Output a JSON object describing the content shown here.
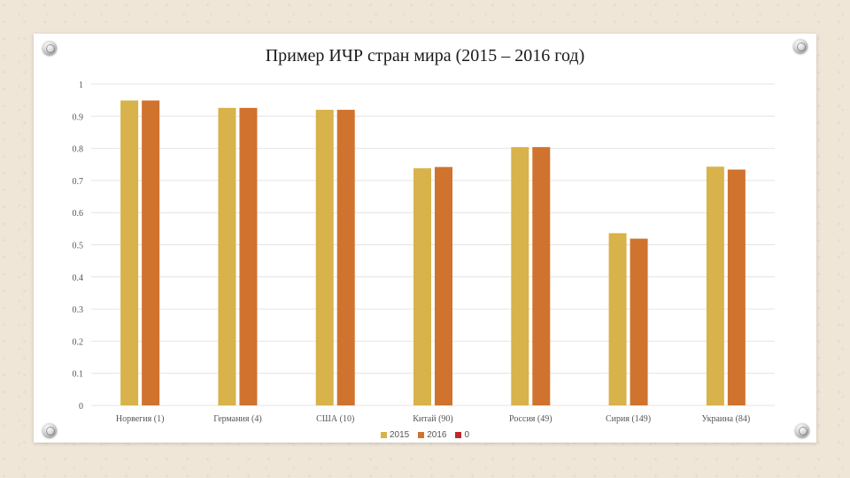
{
  "chart_data": {
    "type": "bar",
    "title": "Пример ИЧР стран мира (2015 – 2016 год)",
    "categories": [
      "Норвегия (1)",
      "Германия (4)",
      "США (10)",
      "Китай (90)",
      "Россия (49)",
      "Сирия (149)",
      "Украина (84)"
    ],
    "series": [
      {
        "name": "2015",
        "color": "#d8b24a",
        "values": [
          0.949,
          0.926,
          0.92,
          0.738,
          0.804,
          0.536,
          0.743
        ]
      },
      {
        "name": "2016",
        "color": "#d0732e",
        "values": [
          0.949,
          0.926,
          0.92,
          0.742,
          0.804,
          0.519,
          0.734
        ]
      },
      {
        "name": "0",
        "color": "#c0282b",
        "values": [
          0,
          0,
          0,
          0,
          0,
          0,
          0
        ]
      }
    ],
    "yticks": [
      "0",
      "0.1",
      "0.2",
      "0.3",
      "0.4",
      "0.5",
      "0.6",
      "0.7",
      "0.8",
      "0.9",
      "1"
    ],
    "ylim": [
      0,
      1
    ],
    "grid": true,
    "legend_position": "bottom"
  }
}
